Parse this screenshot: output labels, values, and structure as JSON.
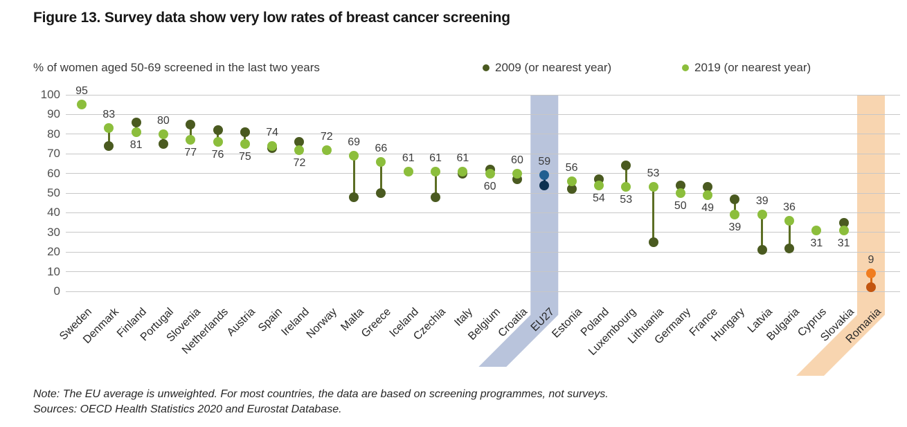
{
  "title": "Figure 13. Survey data show very low rates of breast cancer screening",
  "subtitle": "% of women aged 50-69 screened in the last two years",
  "legend": {
    "items": [
      {
        "label": "2009 (or nearest year)",
        "color": "#4a5a20"
      },
      {
        "label": "2019 (or nearest year)",
        "color": "#8cbe3c"
      }
    ]
  },
  "note": "Note: The EU average is unweighted. For most countries, the data are based on screening programmes, not surveys.",
  "sources": "Sources: OECD Health Statistics 2020 and Eurostat Database.",
  "chart_data": {
    "type": "scatter",
    "subtype": "dumbbell-dot-plot",
    "title": "Figure 13. Survey data show very low rates of breast cancer screening",
    "ylabel": "% of women aged 50-69 screened in the last two years",
    "xlabel": "",
    "ylim": [
      0,
      100
    ],
    "yticks": [
      0,
      10,
      20,
      30,
      40,
      50,
      60,
      70,
      80,
      90,
      100
    ],
    "grid": true,
    "legend_position": "top",
    "categories": [
      "Sweden",
      "Denmark",
      "Finland",
      "Portugal",
      "Slovenia",
      "Netherlands",
      "Austria",
      "Spain",
      "Ireland",
      "Norway",
      "Malta",
      "Greece",
      "Iceland",
      "Czechia",
      "Italy",
      "Belgium",
      "Croatia",
      "EU27",
      "Estonia",
      "Poland",
      "Luxembourg",
      "Lithuania",
      "Germany",
      "France",
      "Hungary",
      "Latvia",
      "Bulgaria",
      "Cyprus",
      "Slovakia",
      "Romania"
    ],
    "series": [
      {
        "name": "2009 (or nearest year)",
        "color": "#4a5a20",
        "values": [
          null,
          74,
          86,
          75,
          85,
          82,
          81,
          73,
          76,
          null,
          48,
          50,
          null,
          48,
          60,
          62,
          57,
          54,
          52,
          57,
          64,
          25,
          54,
          53,
          47,
          21,
          22,
          null,
          35,
          2
        ]
      },
      {
        "name": "2019 (or nearest year)",
        "color": "#8cbe3c",
        "values": [
          95,
          83,
          81,
          80,
          77,
          76,
          75,
          74,
          72,
          72,
          69,
          66,
          61,
          61,
          61,
          60,
          60,
          59,
          56,
          54,
          53,
          53,
          50,
          49,
          39,
          39,
          36,
          31,
          31,
          9
        ]
      }
    ],
    "value_labels": {
      "values": [
        "95",
        "83",
        "81",
        "80",
        "77",
        "76",
        "75",
        "74",
        "72",
        "72",
        "69",
        "66",
        "61",
        "61",
        "61",
        "60",
        "60",
        "59",
        "56",
        "54",
        "53",
        "53",
        "50",
        "49",
        "39",
        "39",
        "36",
        "31",
        "31",
        "9"
      ],
      "side": [
        "above",
        "above",
        "below",
        "above",
        "below",
        "below",
        "below",
        "above",
        "below",
        "above",
        "above",
        "above",
        "above",
        "above",
        "above",
        "below",
        "above",
        "above",
        "above",
        "below",
        "below",
        "above",
        "below",
        "below",
        "below",
        "above",
        "above",
        "below",
        "below",
        "above"
      ]
    },
    "connector_color": "#5c6e24",
    "special_colors": {
      "EU27": {
        "dark": "#0c3050",
        "light": "#205f91",
        "line": "#0c3050"
      },
      "Romania": {
        "dark": "#c3550f",
        "light": "#f07d20",
        "line": "#d96a14"
      }
    },
    "highlight_bands": [
      {
        "category": "EU27",
        "color": "#b9c4dc"
      },
      {
        "category": "Romania",
        "color": "#f8d5b0"
      }
    ]
  }
}
